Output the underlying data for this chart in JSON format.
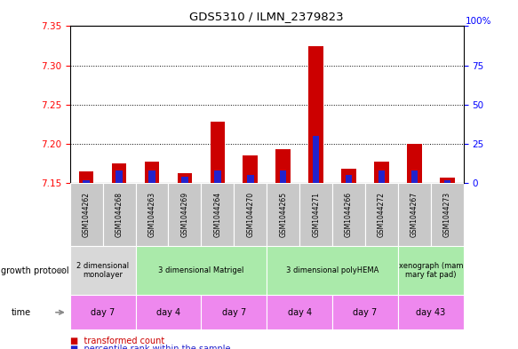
{
  "title": "GDS5310 / ILMN_2379823",
  "samples": [
    "GSM1044262",
    "GSM1044268",
    "GSM1044263",
    "GSM1044269",
    "GSM1044264",
    "GSM1044270",
    "GSM1044265",
    "GSM1044271",
    "GSM1044266",
    "GSM1044272",
    "GSM1044267",
    "GSM1044273"
  ],
  "transformed_count": [
    7.165,
    7.175,
    7.177,
    7.163,
    7.228,
    7.185,
    7.193,
    7.325,
    7.168,
    7.178,
    7.2,
    7.157
  ],
  "percentile_rank": [
    2,
    8,
    8,
    4,
    8,
    5,
    8,
    30,
    5,
    8,
    8,
    2
  ],
  "ylim_left": [
    7.15,
    7.35
  ],
  "ylim_right": [
    0,
    100
  ],
  "yticks_left": [
    7.15,
    7.2,
    7.25,
    7.3,
    7.35
  ],
  "yticks_right": [
    0,
    25,
    50,
    75,
    100
  ],
  "bar_color_red": "#cc0000",
  "bar_color_blue": "#2222cc",
  "base_value": 7.15,
  "growth_protocol_groups": [
    {
      "label": "2 dimensional\nmonolayer",
      "start": 0,
      "end": 2,
      "color": "#d8d8d8"
    },
    {
      "label": "3 dimensional Matrigel",
      "start": 2,
      "end": 6,
      "color": "#aaeaaa"
    },
    {
      "label": "3 dimensional polyHEMA",
      "start": 6,
      "end": 10,
      "color": "#aaeaaa"
    },
    {
      "label": "xenograph (mam\nmary fat pad)",
      "start": 10,
      "end": 12,
      "color": "#aaeaaa"
    }
  ],
  "time_groups": [
    {
      "label": "day 7",
      "start": 0,
      "end": 2,
      "color": "#ee88ee"
    },
    {
      "label": "day 4",
      "start": 2,
      "end": 4,
      "color": "#ee88ee"
    },
    {
      "label": "day 7",
      "start": 4,
      "end": 6,
      "color": "#ee88ee"
    },
    {
      "label": "day 4",
      "start": 6,
      "end": 8,
      "color": "#ee88ee"
    },
    {
      "label": "day 7",
      "start": 8,
      "end": 10,
      "color": "#ee88ee"
    },
    {
      "label": "day 43",
      "start": 10,
      "end": 12,
      "color": "#ee88ee"
    }
  ],
  "sample_bg_color": "#c8c8c8",
  "fig_width": 5.83,
  "fig_height": 3.93,
  "dpi": 100
}
